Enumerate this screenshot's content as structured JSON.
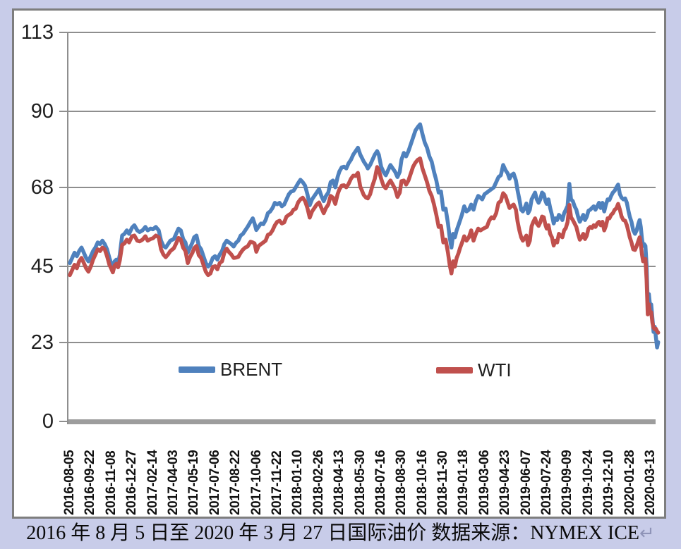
{
  "colors": {
    "page_bg": "#c8cce9",
    "panel_bg": "#ffffff",
    "frame": "#7e7e7e",
    "gridline": "#8e8e8e",
    "axis_bar": "#9d9d9d",
    "brent": "#4F81BD",
    "wti": "#C0504D"
  },
  "legend": {
    "items": [
      {
        "label": "BRENT",
        "color": "#4F81BD"
      },
      {
        "label": "WTI",
        "color": "#C0504D"
      }
    ]
  },
  "caption": {
    "text": "2016 年 8 月 5 日至 2020 年 3 月 27 日国际油价 数据来源：NYMEX ICE",
    "return_mark": "↵"
  },
  "chart_data": {
    "type": "line",
    "title": "",
    "xlabel": "",
    "ylabel": "",
    "ylim": [
      0,
      113
    ],
    "y_ticks": [
      113,
      90,
      68,
      45,
      23,
      0
    ],
    "grid": "horizontal",
    "legend_position": "bottom-inside",
    "x_tick_labels": [
      "2016-08-05",
      "2016-09-22",
      "2016-11-08",
      "2016-12-27",
      "2017-02-14",
      "2017-04-03",
      "2017-05-19",
      "2017-07-06",
      "2017-08-22",
      "2017-10-06",
      "2017-11-22",
      "2018-01-10",
      "2018-02-26",
      "2018-04-13",
      "2018-05-30",
      "2018-07-16",
      "2018-08-30",
      "2018-10-16",
      "2018-11-30",
      "2019-01-18",
      "2019-03-06",
      "2019-04-23",
      "2019-06-07",
      "2019-07-24",
      "2019-09-09",
      "2019-10-24",
      "2019-12-10",
      "2020-01-28",
      "2020-03-13"
    ],
    "series": [
      {
        "name": "BRENT",
        "color": "#4F81BD"
      },
      {
        "name": "WTI",
        "color": "#C0504D"
      }
    ],
    "points_note": "each point = [x fraction along axis from 2016-08-05 tick (0.0) to 2020-03-13 tick (1.0), BRENT $/bbl, WTI $/bbl]",
    "points": [
      [
        0.0,
        46.0,
        42.5
      ],
      [
        0.004,
        47.5,
        44.0
      ],
      [
        0.008,
        49.0,
        45.5
      ],
      [
        0.012,
        48.0,
        44.5
      ],
      [
        0.016,
        49.5,
        46.5
      ],
      [
        0.02,
        50.5,
        47.5
      ],
      [
        0.024,
        49.0,
        46.0
      ],
      [
        0.028,
        47.5,
        44.5
      ],
      [
        0.032,
        46.5,
        43.5
      ],
      [
        0.036,
        48.0,
        45.0
      ],
      [
        0.04,
        49.5,
        47.0
      ],
      [
        0.044,
        50.5,
        48.5
      ],
      [
        0.048,
        52.0,
        50.0
      ],
      [
        0.052,
        51.5,
        49.5
      ],
      [
        0.056,
        52.5,
        50.5
      ],
      [
        0.06,
        51.5,
        50.0
      ],
      [
        0.064,
        50.0,
        48.0
      ],
      [
        0.068,
        47.5,
        45.5
      ],
      [
        0.071,
        46.0,
        44.5
      ],
      [
        0.074,
        44.5,
        43.3
      ],
      [
        0.077,
        46.5,
        45.3
      ],
      [
        0.08,
        47.0,
        45.8
      ],
      [
        0.083,
        45.8,
        44.8
      ],
      [
        0.086,
        48.5,
        46.8
      ],
      [
        0.09,
        54.0,
        51.3
      ],
      [
        0.094,
        54.5,
        51.7
      ],
      [
        0.098,
        55.5,
        52.8
      ],
      [
        0.102,
        54.5,
        52.0
      ],
      [
        0.107,
        56.3,
        53.8
      ],
      [
        0.111,
        57.0,
        54.0
      ],
      [
        0.116,
        55.5,
        52.5
      ],
      [
        0.12,
        55.0,
        52.3
      ],
      [
        0.125,
        55.5,
        52.8
      ],
      [
        0.13,
        56.5,
        53.8
      ],
      [
        0.134,
        55.5,
        52.5
      ],
      [
        0.139,
        56.0,
        53.0
      ],
      [
        0.143,
        55.8,
        53.2
      ],
      [
        0.148,
        56.5,
        54.0
      ],
      [
        0.153,
        55.5,
        53.5
      ],
      [
        0.157,
        52.5,
        50.0
      ],
      [
        0.161,
        51.0,
        48.5
      ],
      [
        0.165,
        50.5,
        47.7
      ],
      [
        0.169,
        51.5,
        48.5
      ],
      [
        0.173,
        52.5,
        49.5
      ],
      [
        0.179,
        53.0,
        50.3
      ],
      [
        0.183,
        54.5,
        51.7
      ],
      [
        0.187,
        56.0,
        53.3
      ],
      [
        0.191,
        55.5,
        52.8
      ],
      [
        0.195,
        53.0,
        50.5
      ],
      [
        0.199,
        52.0,
        49.5
      ],
      [
        0.203,
        49.0,
        46.0
      ],
      [
        0.207,
        50.5,
        47.8
      ],
      [
        0.211,
        52.0,
        49.0
      ],
      [
        0.214,
        53.5,
        50.3
      ],
      [
        0.218,
        54.0,
        51.0
      ],
      [
        0.222,
        51.0,
        48.3
      ],
      [
        0.226,
        50.0,
        47.5
      ],
      [
        0.23,
        48.0,
        45.5
      ],
      [
        0.234,
        46.0,
        43.5
      ],
      [
        0.238,
        45.0,
        42.5
      ],
      [
        0.242,
        45.8,
        43.0
      ],
      [
        0.246,
        47.5,
        44.9
      ],
      [
        0.25,
        48.0,
        45.1
      ],
      [
        0.254,
        47.0,
        44.2
      ],
      [
        0.258,
        48.5,
        46.0
      ],
      [
        0.262,
        49.5,
        46.5
      ],
      [
        0.266,
        51.5,
        49.0
      ],
      [
        0.27,
        52.5,
        50.2
      ],
      [
        0.274,
        52.0,
        49.2
      ],
      [
        0.278,
        51.5,
        48.5
      ],
      [
        0.282,
        50.8,
        47.5
      ],
      [
        0.286,
        51.9,
        47.6
      ],
      [
        0.29,
        52.5,
        47.8
      ],
      [
        0.294,
        54.0,
        49.0
      ],
      [
        0.298,
        54.5,
        49.9
      ],
      [
        0.302,
        55.5,
        50.5
      ],
      [
        0.306,
        56.5,
        50.8
      ],
      [
        0.311,
        58.0,
        52.2
      ],
      [
        0.315,
        59.0,
        52.0
      ],
      [
        0.318,
        57.5,
        51.7
      ],
      [
        0.321,
        55.6,
        49.3
      ],
      [
        0.325,
        56.6,
        51.0
      ],
      [
        0.329,
        57.5,
        51.5
      ],
      [
        0.333,
        57.3,
        52.0
      ],
      [
        0.337,
        58.5,
        52.5
      ],
      [
        0.341,
        60.5,
        54.2
      ],
      [
        0.345,
        61.0,
        54.5
      ],
      [
        0.349,
        62.0,
        55.5
      ],
      [
        0.353,
        63.5,
        57.0
      ],
      [
        0.357,
        63.1,
        58.0
      ],
      [
        0.361,
        63.5,
        58.3
      ],
      [
        0.365,
        62.5,
        57.5
      ],
      [
        0.369,
        63.0,
        57.8
      ],
      [
        0.373,
        64.5,
        59.5
      ],
      [
        0.377,
        66.0,
        60.0
      ],
      [
        0.381,
        66.8,
        60.4
      ],
      [
        0.385,
        67.0,
        61.5
      ],
      [
        0.389,
        68.0,
        61.8
      ],
      [
        0.393,
        69.2,
        63.6
      ],
      [
        0.397,
        70.2,
        64.5
      ],
      [
        0.401,
        69.5,
        65.0
      ],
      [
        0.405,
        68.5,
        64.0
      ],
      [
        0.409,
        66.0,
        62.0
      ],
      [
        0.413,
        62.8,
        59.2
      ],
      [
        0.417,
        64.5,
        61.0
      ],
      [
        0.421,
        65.5,
        62.0
      ],
      [
        0.425,
        66.5,
        63.0
      ],
      [
        0.429,
        67.5,
        63.6
      ],
      [
        0.433,
        65.5,
        62.0
      ],
      [
        0.437,
        64.0,
        60.5
      ],
      [
        0.441,
        65.5,
        62.0
      ],
      [
        0.445,
        66.5,
        63.0
      ],
      [
        0.449,
        69.5,
        65.5
      ],
      [
        0.453,
        70.0,
        65.0
      ],
      [
        0.457,
        68.0,
        63.2
      ],
      [
        0.461,
        71.0,
        66.0
      ],
      [
        0.464,
        72.6,
        67.4
      ],
      [
        0.468,
        73.8,
        68.5
      ],
      [
        0.472,
        74.0,
        68.6
      ],
      [
        0.476,
        73.5,
        68.0
      ],
      [
        0.48,
        75.0,
        69.0
      ],
      [
        0.484,
        76.0,
        70.5
      ],
      [
        0.488,
        77.5,
        71.4
      ],
      [
        0.492,
        78.5,
        71.3
      ],
      [
        0.496,
        79.5,
        72.2
      ],
      [
        0.5,
        77.5,
        68.2
      ],
      [
        0.503,
        76.5,
        67.0
      ],
      [
        0.506,
        75.5,
        65.8
      ],
      [
        0.51,
        74.5,
        65.0
      ],
      [
        0.513,
        73.5,
        64.8
      ],
      [
        0.517,
        74.5,
        66.0
      ],
      [
        0.521,
        76.0,
        68.5
      ],
      [
        0.525,
        77.5,
        70.5
      ],
      [
        0.529,
        78.5,
        73.9
      ],
      [
        0.532,
        77.5,
        73.0
      ],
      [
        0.536,
        74.0,
        70.5
      ],
      [
        0.54,
        72.5,
        68.5
      ],
      [
        0.544,
        71.5,
        67.7
      ],
      [
        0.548,
        73.0,
        69.0
      ],
      [
        0.552,
        74.5,
        70.0
      ],
      [
        0.556,
        73.5,
        68.8
      ],
      [
        0.56,
        72.5,
        67.5
      ],
      [
        0.564,
        71.0,
        65.2
      ],
      [
        0.568,
        72.5,
        66.5
      ],
      [
        0.571,
        76.0,
        69.8
      ],
      [
        0.575,
        78.0,
        70.0
      ],
      [
        0.579,
        77.0,
        68.8
      ],
      [
        0.583,
        78.5,
        70.0
      ],
      [
        0.587,
        80.5,
        72.0
      ],
      [
        0.591,
        82.5,
        74.0
      ],
      [
        0.595,
        84.5,
        75.2
      ],
      [
        0.599,
        85.5,
        76.0
      ],
      [
        0.603,
        86.3,
        76.4
      ],
      [
        0.607,
        83.5,
        73.5
      ],
      [
        0.611,
        81.0,
        71.5
      ],
      [
        0.615,
        79.5,
        69.5
      ],
      [
        0.619,
        77.0,
        67.0
      ],
      [
        0.623,
        75.5,
        65.5
      ],
      [
        0.627,
        72.5,
        63.0
      ],
      [
        0.631,
        70.0,
        60.0
      ],
      [
        0.635,
        66.5,
        56.5
      ],
      [
        0.639,
        66.8,
        56.8
      ],
      [
        0.643,
        61.5,
        52.0
      ],
      [
        0.647,
        61.8,
        52.8
      ],
      [
        0.651,
        57.5,
        49.0
      ],
      [
        0.654,
        53.5,
        45.5
      ],
      [
        0.657,
        50.5,
        43.0
      ],
      [
        0.66,
        54.5,
        46.5
      ],
      [
        0.663,
        53.5,
        45.0
      ],
      [
        0.666,
        55.5,
        47.5
      ],
      [
        0.669,
        57.0,
        48.8
      ],
      [
        0.672,
        58.5,
        50.5
      ],
      [
        0.675,
        60.0,
        51.8
      ],
      [
        0.679,
        62.5,
        53.8
      ],
      [
        0.683,
        61.0,
        52.5
      ],
      [
        0.687,
        61.5,
        53.5
      ],
      [
        0.691,
        63.0,
        55.5
      ],
      [
        0.695,
        61.5,
        52.5
      ],
      [
        0.699,
        64.0,
        54.5
      ],
      [
        0.703,
        65.5,
        56.0
      ],
      [
        0.707,
        65.0,
        55.5
      ],
      [
        0.71,
        64.5,
        55.8
      ],
      [
        0.714,
        66.0,
        56.2
      ],
      [
        0.718,
        66.5,
        56.5
      ],
      [
        0.722,
        67.0,
        58.3
      ],
      [
        0.726,
        67.5,
        59.3
      ],
      [
        0.73,
        68.0,
        59.0
      ],
      [
        0.734,
        69.5,
        60.5
      ],
      [
        0.738,
        71.0,
        63.5
      ],
      [
        0.742,
        71.5,
        64.0
      ],
      [
        0.746,
        74.5,
        66.3
      ],
      [
        0.75,
        73.0,
        65.5
      ],
      [
        0.754,
        72.0,
        63.5
      ],
      [
        0.757,
        70.5,
        62.0
      ],
      [
        0.76,
        71.5,
        62.5
      ],
      [
        0.764,
        72.0,
        63.0
      ],
      [
        0.768,
        70.0,
        61.5
      ],
      [
        0.771,
        67.0,
        58.0
      ],
      [
        0.774,
        64.5,
        55.5
      ],
      [
        0.777,
        61.5,
        53.5
      ],
      [
        0.78,
        61.0,
        52.5
      ],
      [
        0.783,
        62.0,
        53.3
      ],
      [
        0.786,
        63.3,
        54.0
      ],
      [
        0.789,
        60.5,
        51.2
      ],
      [
        0.792,
        61.5,
        52.5
      ],
      [
        0.795,
        64.5,
        56.7
      ],
      [
        0.798,
        65.5,
        58.0
      ],
      [
        0.801,
        66.5,
        59.0
      ],
      [
        0.804,
        64.5,
        57.5
      ],
      [
        0.807,
        63.5,
        56.8
      ],
      [
        0.81,
        64.5,
        57.8
      ],
      [
        0.813,
        66.5,
        59.5
      ],
      [
        0.816,
        66.0,
        59.3
      ],
      [
        0.819,
        64.0,
        57.0
      ],
      [
        0.821,
        63.2,
        56.0
      ],
      [
        0.824,
        64.5,
        57.0
      ],
      [
        0.827,
        62.0,
        54.5
      ],
      [
        0.83,
        60.0,
        53.5
      ],
      [
        0.833,
        57.5,
        51.1
      ],
      [
        0.836,
        59.0,
        52.5
      ],
      [
        0.839,
        58.5,
        52.0
      ],
      [
        0.842,
        60.0,
        54.5
      ],
      [
        0.845,
        59.5,
        54.0
      ],
      [
        0.848,
        58.5,
        53.5
      ],
      [
        0.851,
        60.5,
        55.5
      ],
      [
        0.854,
        61.5,
        56.2
      ],
      [
        0.857,
        62.6,
        57.9
      ],
      [
        0.86,
        69.0,
        62.9
      ],
      [
        0.863,
        64.5,
        59.3
      ],
      [
        0.866,
        64.0,
        58.5
      ],
      [
        0.869,
        62.5,
        57.5
      ],
      [
        0.872,
        61.5,
        56.5
      ],
      [
        0.875,
        59.5,
        54.5
      ],
      [
        0.878,
        58.0,
        52.8
      ],
      [
        0.881,
        59.0,
        53.5
      ],
      [
        0.884,
        60.0,
        54.5
      ],
      [
        0.887,
        58.5,
        53.0
      ],
      [
        0.89,
        59.5,
        54.0
      ],
      [
        0.893,
        61.2,
        56.0
      ],
      [
        0.896,
        61.5,
        56.5
      ],
      [
        0.899,
        62.0,
        56.2
      ],
      [
        0.902,
        62.5,
        57.0
      ],
      [
        0.905,
        61.5,
        56.5
      ],
      [
        0.908,
        62.5,
        57.5
      ],
      [
        0.911,
        63.5,
        58.0
      ],
      [
        0.914,
        62.0,
        57.0
      ],
      [
        0.917,
        63.5,
        58.0
      ],
      [
        0.92,
        61.0,
        55.5
      ],
      [
        0.923,
        63.0,
        56.8
      ],
      [
        0.926,
        64.5,
        59.0
      ],
      [
        0.929,
        64.3,
        59.0
      ],
      [
        0.932,
        65.5,
        60.0
      ],
      [
        0.935,
        66.5,
        60.5
      ],
      [
        0.938,
        67.0,
        61.5
      ],
      [
        0.941,
        68.0,
        61.9
      ],
      [
        0.944,
        68.8,
        63.2
      ],
      [
        0.947,
        66.0,
        61.5
      ],
      [
        0.95,
        65.0,
        59.5
      ],
      [
        0.953,
        64.5,
        58.5
      ],
      [
        0.956,
        64.8,
        58.3
      ],
      [
        0.959,
        63.5,
        57.0
      ],
      [
        0.962,
        61.0,
        55.0
      ],
      [
        0.964,
        59.5,
        53.5
      ],
      [
        0.967,
        58.0,
        52.0
      ],
      [
        0.97,
        55.5,
        50.0
      ],
      [
        0.973,
        54.5,
        49.8
      ],
      [
        0.976,
        55.5,
        51.0
      ],
      [
        0.979,
        57.5,
        52.5
      ],
      [
        0.981,
        58.5,
        53.5
      ],
      [
        0.983,
        56.5,
        51.5
      ],
      [
        0.985,
        53.0,
        48.5
      ],
      [
        0.987,
        51.0,
        46.5
      ],
      [
        0.989,
        51.5,
        47.0
      ],
      [
        0.991,
        51.0,
        47.2
      ],
      [
        0.993,
        45.5,
        41.3
      ],
      [
        0.995,
        34.5,
        31.1
      ],
      [
        0.997,
        37.0,
        34.0
      ],
      [
        0.999,
        33.5,
        31.5
      ],
      [
        1.001,
        34.0,
        31.7
      ],
      [
        1.003,
        30.0,
        28.7
      ],
      [
        1.005,
        26.0,
        27.2
      ],
      [
        1.007,
        27.5,
        26.8
      ],
      [
        1.009,
        24.5,
        26.9
      ],
      [
        1.011,
        21.5,
        26.2
      ],
      [
        1.013,
        23.0,
        25.8
      ]
    ]
  }
}
